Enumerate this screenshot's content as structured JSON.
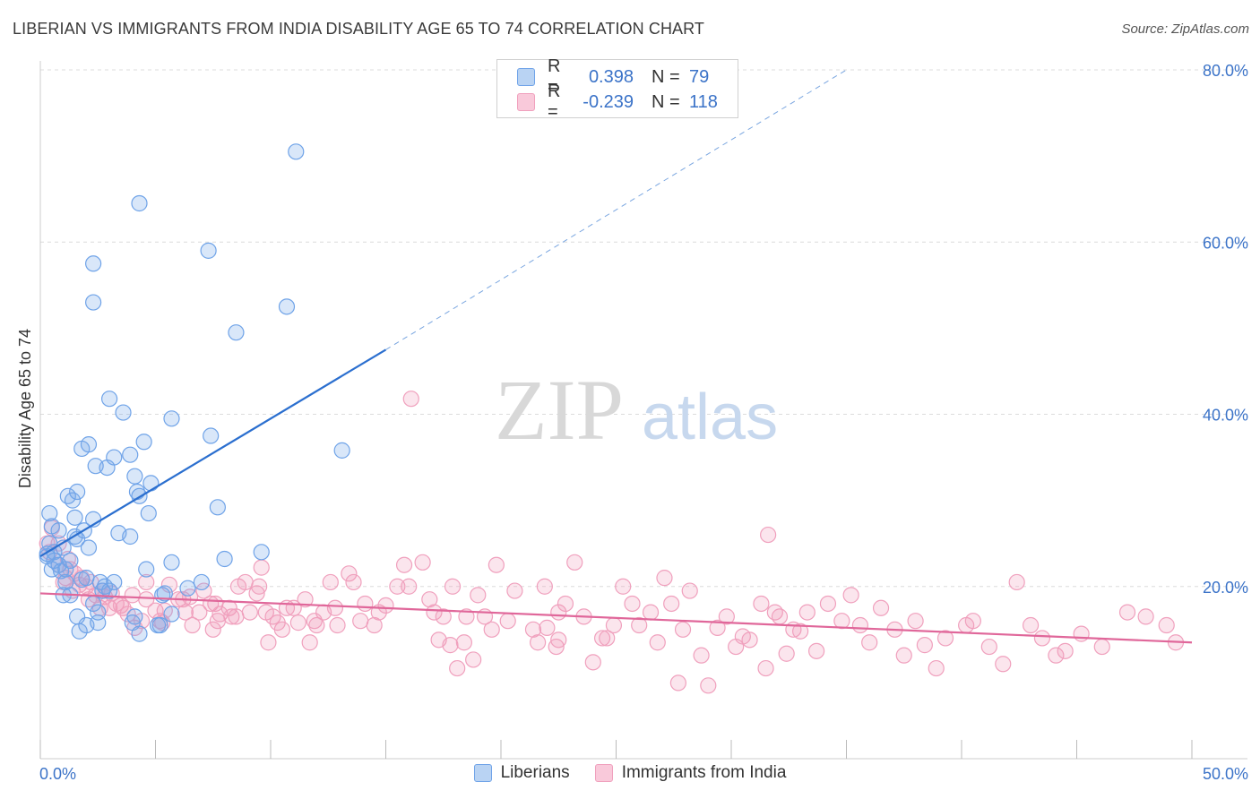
{
  "header": {
    "title": "LIBERIAN VS IMMIGRANTS FROM INDIA DISABILITY AGE 65 TO 74 CORRELATION CHART",
    "source": "Source: ZipAtlas.com"
  },
  "watermark": {
    "zip": "ZIP",
    "atlas": "atlas"
  },
  "legend": {
    "rows": [
      {
        "r_label": "R =",
        "r_value": "0.398",
        "n_label": "N =",
        "n_value": "79",
        "color": "#6fa3e8"
      },
      {
        "r_label": "R =",
        "r_value": "-0.239",
        "n_label": "N =",
        "n_value": "118",
        "color": "#f0a0bd"
      }
    ]
  },
  "bottom_legend": {
    "series1": "Liberians",
    "series2": "Immigrants from India"
  },
  "chart_data": {
    "type": "scatter",
    "title": "LIBERIAN VS IMMIGRANTS FROM INDIA DISABILITY AGE 65 TO 74 CORRELATION CHART",
    "xlabel": "",
    "ylabel": "Disability Age 65 to 74",
    "xlim": [
      0,
      50
    ],
    "ylim": [
      0,
      80
    ],
    "x_tick_labels": [
      "0.0%",
      "50.0%"
    ],
    "y_tick_labels": [
      "20.0%",
      "40.0%",
      "60.0%",
      "80.0%"
    ],
    "y_ticks": [
      20,
      40,
      60,
      80
    ],
    "grid": true,
    "legend_position": "top-center",
    "series": [
      {
        "name": "Liberians",
        "color": "#6fa3e8",
        "trend": {
          "x0": 0,
          "y0": 23.5,
          "x1": 15,
          "y1": 47.5,
          "dashed_x1": 35,
          "dashed_y1": 80
        },
        "points": [
          [
            0.3,
            23.5
          ],
          [
            0.3,
            23.8
          ],
          [
            0.4,
            25
          ],
          [
            0.4,
            28.5
          ],
          [
            0.5,
            27
          ],
          [
            0.5,
            22
          ],
          [
            0.6,
            24
          ],
          [
            0.6,
            23
          ],
          [
            0.8,
            26.5
          ],
          [
            0.8,
            22.5
          ],
          [
            0.9,
            21.8
          ],
          [
            1,
            24.5
          ],
          [
            1,
            19
          ],
          [
            1.1,
            20.5
          ],
          [
            1.1,
            22
          ],
          [
            1.2,
            30.5
          ],
          [
            1.3,
            23
          ],
          [
            1.3,
            19
          ],
          [
            1.4,
            30
          ],
          [
            1.5,
            25.8
          ],
          [
            1.5,
            28
          ],
          [
            1.6,
            31
          ],
          [
            1.6,
            25.5
          ],
          [
            1.6,
            16.5
          ],
          [
            1.7,
            14.8
          ],
          [
            1.8,
            36
          ],
          [
            1.8,
            20.8
          ],
          [
            1.9,
            26.5
          ],
          [
            2,
            21
          ],
          [
            2,
            15.5
          ],
          [
            2.1,
            24.5
          ],
          [
            2.1,
            36.5
          ],
          [
            2.3,
            18
          ],
          [
            2.3,
            57.5
          ],
          [
            2.3,
            27.8
          ],
          [
            2.3,
            53
          ],
          [
            2.4,
            34
          ],
          [
            2.5,
            15.8
          ],
          [
            2.5,
            17
          ],
          [
            2.6,
            20.5
          ],
          [
            2.7,
            19.5
          ],
          [
            2.8,
            20
          ],
          [
            2.9,
            33.8
          ],
          [
            3,
            41.8
          ],
          [
            3,
            19.5
          ],
          [
            3.2,
            20.5
          ],
          [
            3.2,
            35
          ],
          [
            3.4,
            26.2
          ],
          [
            3.6,
            40.2
          ],
          [
            3.9,
            35.3
          ],
          [
            3.9,
            25.8
          ],
          [
            4,
            15.8
          ],
          [
            4.1,
            16.5
          ],
          [
            4.1,
            32.8
          ],
          [
            4.2,
            31
          ],
          [
            4.3,
            14.5
          ],
          [
            4.3,
            30.5
          ],
          [
            4.3,
            64.5
          ],
          [
            4.5,
            36.8
          ],
          [
            4.6,
            22
          ],
          [
            4.7,
            28.5
          ],
          [
            4.8,
            32
          ],
          [
            5.1,
            15.5
          ],
          [
            5.2,
            15.5
          ],
          [
            5.3,
            19
          ],
          [
            5.4,
            19.2
          ],
          [
            5.7,
            16.8
          ],
          [
            5.7,
            22.8
          ],
          [
            5.7,
            39.5
          ],
          [
            6.4,
            19.8
          ],
          [
            7,
            20.5
          ],
          [
            7.3,
            59
          ],
          [
            7.4,
            37.5
          ],
          [
            7.7,
            29.2
          ],
          [
            8,
            23.2
          ],
          [
            8.5,
            49.5
          ],
          [
            9.6,
            24
          ],
          [
            10.7,
            52.5
          ],
          [
            11.1,
            70.5
          ],
          [
            13.1,
            35.8
          ]
        ]
      },
      {
        "name": "Immigrants from India",
        "color": "#f0a0bd",
        "trend": {
          "x0": 0,
          "y0": 19.2,
          "x1": 50,
          "y1": 13.5
        },
        "points": [
          [
            0.3,
            25
          ],
          [
            0.4,
            24
          ],
          [
            0.5,
            26.8
          ],
          [
            0.8,
            22.5
          ],
          [
            0.8,
            25
          ],
          [
            1,
            20.5
          ],
          [
            1.1,
            21
          ],
          [
            1.2,
            23.2
          ],
          [
            1.3,
            22
          ],
          [
            1.4,
            19.5
          ],
          [
            1.5,
            21.5
          ],
          [
            1.7,
            20.2
          ],
          [
            1.8,
            21
          ],
          [
            2,
            20
          ],
          [
            2.1,
            18.5
          ],
          [
            2.2,
            20.5
          ],
          [
            2.4,
            19
          ],
          [
            2.6,
            17.5
          ],
          [
            2.7,
            19.5
          ],
          [
            2.8,
            18.8
          ],
          [
            3,
            17.5
          ],
          [
            3.1,
            19.2
          ],
          [
            3.3,
            18
          ],
          [
            3.5,
            17.8
          ],
          [
            3.6,
            17.5
          ],
          [
            3.8,
            16.8
          ],
          [
            4,
            19
          ],
          [
            4.1,
            15.2
          ],
          [
            4.4,
            16
          ],
          [
            4.6,
            18.5
          ],
          [
            4.6,
            20.5
          ],
          [
            5,
            17.2
          ],
          [
            5.2,
            16
          ],
          [
            5.3,
            15.8
          ],
          [
            5.4,
            17.2
          ],
          [
            5.6,
            20.2
          ],
          [
            6,
            18.5
          ],
          [
            6.2,
            18.5
          ],
          [
            6.3,
            17
          ],
          [
            6.5,
            18.8
          ],
          [
            6.6,
            15.5
          ],
          [
            6.9,
            17
          ],
          [
            7.1,
            19.5
          ],
          [
            7.4,
            18
          ],
          [
            7.5,
            15
          ],
          [
            7.6,
            18
          ],
          [
            7.7,
            16
          ],
          [
            7.8,
            16.8
          ],
          [
            8.2,
            17.5
          ],
          [
            8.3,
            16.5
          ],
          [
            8.5,
            16.5
          ],
          [
            8.6,
            20
          ],
          [
            8.9,
            20.5
          ],
          [
            9.1,
            17
          ],
          [
            9.4,
            19.2
          ],
          [
            9.5,
            20
          ],
          [
            9.6,
            22.2
          ],
          [
            9.8,
            17
          ],
          [
            9.9,
            13.5
          ],
          [
            10.1,
            16.5
          ],
          [
            10.3,
            15.8
          ],
          [
            10.5,
            15
          ],
          [
            10.7,
            17.5
          ],
          [
            11,
            17.5
          ],
          [
            11.2,
            15.8
          ],
          [
            11.5,
            18.5
          ],
          [
            11.7,
            13.5
          ],
          [
            11.9,
            16
          ],
          [
            12,
            15.5
          ],
          [
            12.3,
            17
          ],
          [
            12.6,
            20.5
          ],
          [
            12.8,
            17.5
          ],
          [
            12.9,
            15.5
          ],
          [
            13.4,
            21.5
          ],
          [
            13.6,
            20.5
          ],
          [
            13.9,
            16
          ],
          [
            14.1,
            18
          ],
          [
            14.5,
            15.5
          ],
          [
            14.7,
            17
          ],
          [
            15,
            17.8
          ],
          [
            15.5,
            20
          ],
          [
            15.8,
            22.5
          ],
          [
            16,
            20
          ],
          [
            16.1,
            41.8
          ],
          [
            16.6,
            22.8
          ],
          [
            16.9,
            18.5
          ],
          [
            17.1,
            17
          ],
          [
            17.3,
            13.8
          ],
          [
            17.5,
            16.5
          ],
          [
            17.8,
            13.2
          ],
          [
            17.9,
            20
          ],
          [
            18.1,
            10.5
          ],
          [
            18.4,
            13.5
          ],
          [
            18.5,
            16.5
          ],
          [
            18.8,
            11.5
          ],
          [
            19,
            19
          ],
          [
            19.3,
            16.5
          ],
          [
            19.6,
            15
          ],
          [
            19.8,
            22.5
          ],
          [
            20.3,
            16
          ],
          [
            20.6,
            19.5
          ],
          [
            21.4,
            15
          ],
          [
            21.6,
            13.5
          ],
          [
            21.9,
            20
          ],
          [
            22,
            15.2
          ],
          [
            22.4,
            13
          ],
          [
            22.5,
            13.8
          ],
          [
            22.5,
            17
          ],
          [
            22.8,
            18
          ],
          [
            23.2,
            22.8
          ],
          [
            23.6,
            16.5
          ],
          [
            24,
            11.2
          ],
          [
            24.4,
            14
          ],
          [
            24.6,
            14
          ],
          [
            24.9,
            15.5
          ],
          [
            25.3,
            20
          ],
          [
            25.7,
            18
          ],
          [
            26,
            15.5
          ],
          [
            26.5,
            17
          ],
          [
            26.8,
            13.5
          ],
          [
            27.1,
            21
          ],
          [
            27.4,
            18
          ],
          [
            27.7,
            8.8
          ],
          [
            27.9,
            15
          ],
          [
            28.2,
            19.5
          ],
          [
            28.7,
            12
          ],
          [
            29,
            8.5
          ],
          [
            29.4,
            15.2
          ],
          [
            29.8,
            16.5
          ],
          [
            30.2,
            13
          ],
          [
            30.5,
            14.2
          ],
          [
            30.8,
            13.8
          ],
          [
            31.3,
            18
          ],
          [
            31.5,
            10.5
          ],
          [
            31.6,
            26
          ],
          [
            31.9,
            17
          ],
          [
            32.1,
            16.5
          ],
          [
            32.4,
            12.2
          ],
          [
            32.7,
            15
          ],
          [
            33,
            14.8
          ],
          [
            33.3,
            17
          ],
          [
            33.7,
            12.5
          ],
          [
            34.2,
            18
          ],
          [
            34.8,
            16
          ],
          [
            35.2,
            19
          ],
          [
            35.6,
            15.5
          ],
          [
            36,
            13.5
          ],
          [
            36.5,
            17.5
          ],
          [
            37.1,
            15
          ],
          [
            37.5,
            12
          ],
          [
            38,
            16
          ],
          [
            38.4,
            13.2
          ],
          [
            38.9,
            10.5
          ],
          [
            39.3,
            14
          ],
          [
            40.2,
            15.5
          ],
          [
            40.5,
            16
          ],
          [
            41.2,
            13
          ],
          [
            41.8,
            11
          ],
          [
            42.4,
            20.5
          ],
          [
            43,
            15.5
          ],
          [
            43.5,
            14
          ],
          [
            44.1,
            12
          ],
          [
            44.5,
            12.5
          ],
          [
            45.2,
            14.5
          ],
          [
            46.1,
            13
          ],
          [
            47.2,
            17
          ],
          [
            48,
            16.5
          ],
          [
            48.9,
            15.5
          ],
          [
            49.3,
            13.5
          ]
        ]
      }
    ]
  }
}
